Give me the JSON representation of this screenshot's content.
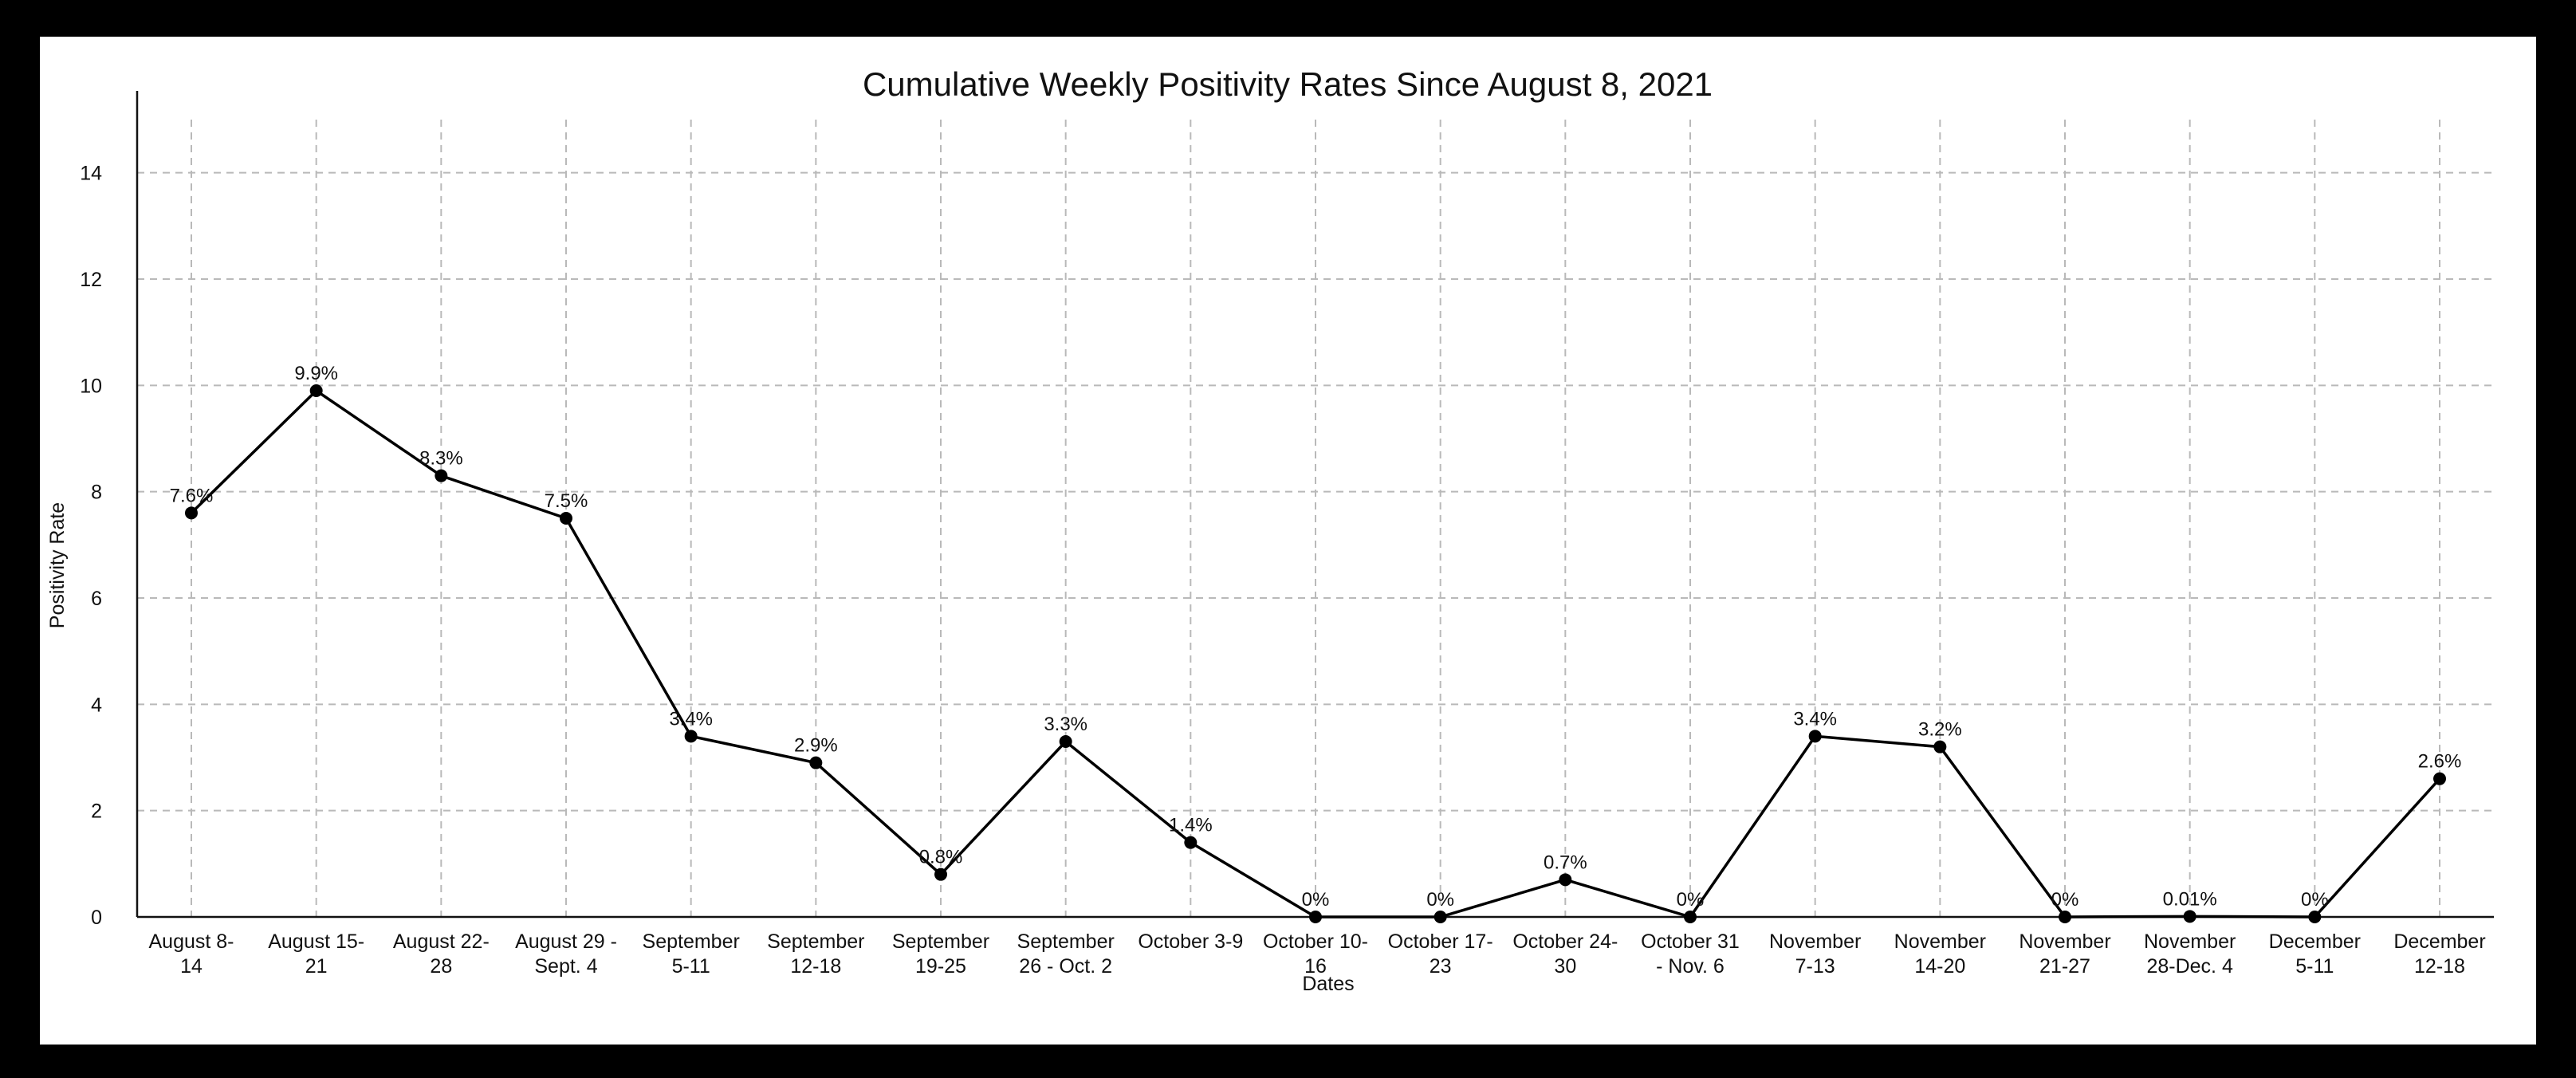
{
  "chart_data": {
    "type": "line",
    "title": "Cumulative Weekly Positivity Rates Since August 8, 2021",
    "xlabel": "Dates",
    "ylabel": "Positivity Rate",
    "ylim": [
      0,
      15
    ],
    "yticks": [
      0,
      2,
      4,
      6,
      8,
      10,
      12,
      14
    ],
    "grid": true,
    "categories": [
      [
        "August 8-",
        "14"
      ],
      [
        "August 15-",
        "21"
      ],
      [
        "August 22-",
        "28"
      ],
      [
        "August 29 -",
        "Sept. 4"
      ],
      [
        "September",
        "5-11"
      ],
      [
        "September",
        "12-18"
      ],
      [
        "September",
        "19-25"
      ],
      [
        "September",
        "26 - Oct. 2"
      ],
      [
        "October 3-9"
      ],
      [
        "October 10-",
        "16"
      ],
      [
        "October 17-",
        "23"
      ],
      [
        "October 24-",
        "30"
      ],
      [
        "October 31",
        "- Nov. 6"
      ],
      [
        "November",
        "7-13"
      ],
      [
        "November",
        "14-20"
      ],
      [
        "November",
        "21-27"
      ],
      [
        "November",
        "28-Dec. 4"
      ],
      [
        "December",
        "5-11"
      ],
      [
        "December",
        "12-18"
      ]
    ],
    "series": [
      {
        "values": [
          7.6,
          9.9,
          8.3,
          7.5,
          3.4,
          2.9,
          0.8,
          3.3,
          1.4,
          0,
          0,
          0.7,
          0,
          3.4,
          3.2,
          0,
          0.01,
          0,
          2.6
        ],
        "labels": [
          "7.6%",
          "9.9%",
          "8.3%",
          "7.5%",
          "3.4%",
          "2.9%",
          "0.8%",
          "3.3%",
          "1.4%",
          "0%",
          "0%",
          "0.7%",
          "0%",
          "3.4%",
          "3.2%",
          "0%",
          "0.01%",
          "0%",
          "2.6%"
        ],
        "color": "#000000"
      }
    ]
  }
}
